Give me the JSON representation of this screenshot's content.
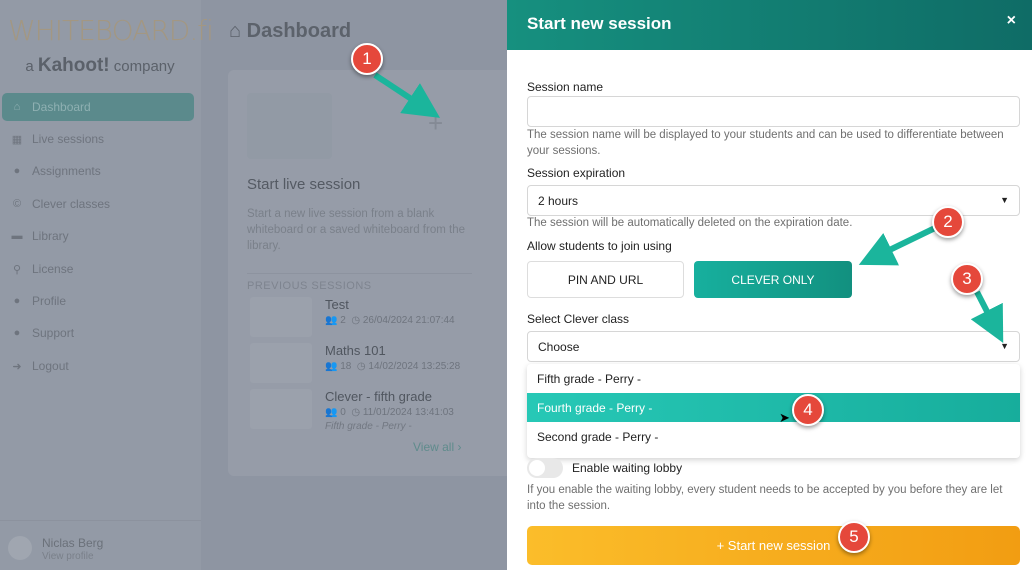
{
  "logo": {
    "text": "WHITEBOARD.fi",
    "sub_prefix": "a",
    "sub_brand": "Kahoot!",
    "sub_suffix": "company"
  },
  "sidebar": {
    "items": [
      {
        "label": "Dashboard",
        "icon": "home-icon",
        "active": true
      },
      {
        "label": "Live sessions",
        "icon": "classroom-icon"
      },
      {
        "label": "Assignments",
        "icon": "user-check-icon"
      },
      {
        "label": "Clever classes",
        "icon": "clever-icon"
      },
      {
        "label": "Library",
        "icon": "folder-icon"
      },
      {
        "label": "License",
        "icon": "key-icon"
      },
      {
        "label": "Profile",
        "icon": "user-icon"
      },
      {
        "label": "Support",
        "icon": "support-icon"
      },
      {
        "label": "Logout",
        "icon": "logout-icon"
      }
    ]
  },
  "user": {
    "name": "Niclas Berg",
    "link": "View profile"
  },
  "main": {
    "title": "Dashboard",
    "card": {
      "title": "Start live session",
      "description": "Start a new live session from a blank whiteboard or a saved whiteboard from the library.",
      "previous_label": "PREVIOUS SESSIONS",
      "sessions": [
        {
          "name": "Test",
          "students": "2",
          "date": "26/04/2024 21:07:44"
        },
        {
          "name": "Maths 101",
          "students": "18",
          "date": "14/02/2024 13:25:28"
        },
        {
          "name": "Clever - fifth grade",
          "students": "0",
          "date": "11/01/2024 13:41:03",
          "class": "Fifth grade - Perry -"
        }
      ],
      "view_all": "View all"
    }
  },
  "panel": {
    "title": "Start new session",
    "close": "×",
    "session_name": {
      "label": "Session name",
      "value": "",
      "help": "The session name will be displayed to your students and can be used to differentiate between your sessions."
    },
    "expiration": {
      "label": "Session expiration",
      "value": "2 hours",
      "help": "The session will be automatically deleted on the expiration date."
    },
    "join": {
      "label": "Allow students to join using",
      "options": [
        "PIN AND URL",
        "CLEVER ONLY"
      ],
      "selected": "CLEVER ONLY"
    },
    "clever_class": {
      "label": "Select Clever class",
      "value": "Choose",
      "options": [
        "Fifth grade - Perry -",
        "Fourth grade - Perry -",
        "Second grade - Perry -"
      ],
      "highlighted": "Fourth grade - Perry -"
    },
    "lobby": {
      "label": "Enable waiting lobby",
      "enabled": false,
      "help": "If you enable the waiting lobby, every student needs to be accepted by you before they are let into the session."
    },
    "start_button": "+ Start new session"
  },
  "annotations": [
    "1",
    "2",
    "3",
    "4",
    "5"
  ],
  "colors": {
    "accent": "#17b09e",
    "header": "#12806f",
    "start_button": "#f6aa1c",
    "badge": "#e5483b"
  }
}
